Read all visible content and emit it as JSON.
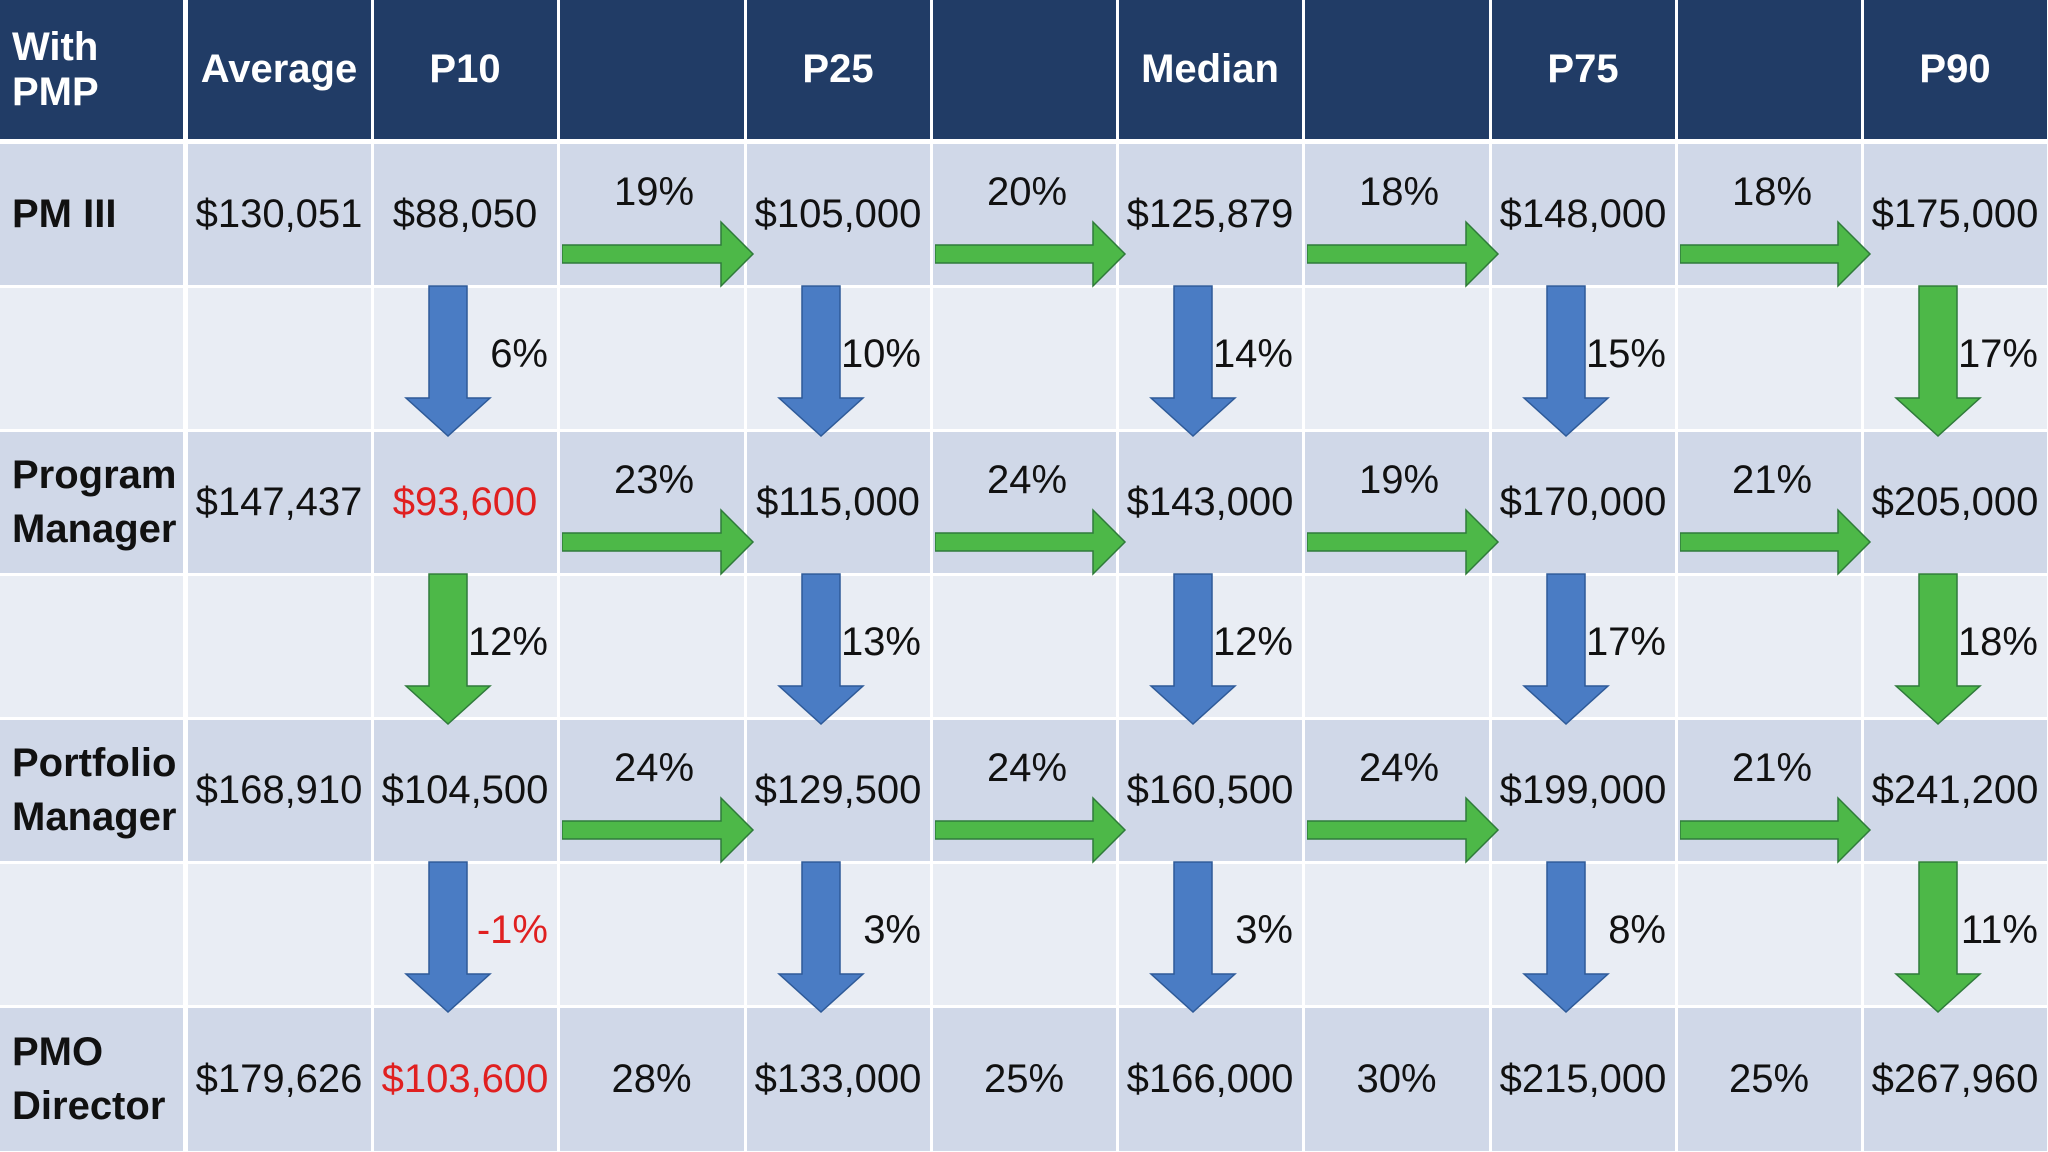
{
  "header": [
    "With PMP",
    "Average",
    "P10",
    "",
    "P25",
    "",
    "Median",
    "",
    "P75",
    "",
    "P90"
  ],
  "rows": [
    {
      "role": "PM III",
      "average": "$130,051",
      "values": [
        {
          "text": "$88,050",
          "red": false
        },
        {
          "text": "$105,000",
          "red": false
        },
        {
          "text": "$125,879",
          "red": false
        },
        {
          "text": "$148,000",
          "red": false
        },
        {
          "text": "$175,000",
          "red": false
        }
      ],
      "gaps": [
        "19%",
        "20%",
        "18%",
        "18%"
      ],
      "gaps_arrow": true
    },
    {
      "role": "Program Manager",
      "average": "$147,437",
      "values": [
        {
          "text": "$93,600",
          "red": true
        },
        {
          "text": "$115,000",
          "red": false
        },
        {
          "text": "$143,000",
          "red": false
        },
        {
          "text": "$170,000",
          "red": false
        },
        {
          "text": "$205,000",
          "red": false
        }
      ],
      "gaps": [
        "23%",
        "24%",
        "19%",
        "21%"
      ],
      "gaps_arrow": true
    },
    {
      "role": "Portfolio Manager",
      "average": "$168,910",
      "values": [
        {
          "text": "$104,500",
          "red": false
        },
        {
          "text": "$129,500",
          "red": false
        },
        {
          "text": "$160,500",
          "red": false
        },
        {
          "text": "$199,000",
          "red": false
        },
        {
          "text": "$241,200",
          "red": false
        }
      ],
      "gaps": [
        "24%",
        "24%",
        "24%",
        "21%"
      ],
      "gaps_arrow": true
    },
    {
      "role": "PMO Director",
      "average": "$179,626",
      "values": [
        {
          "text": "$103,600",
          "red": true
        },
        {
          "text": "$133,000",
          "red": false
        },
        {
          "text": "$166,000",
          "red": false
        },
        {
          "text": "$215,000",
          "red": false
        },
        {
          "text": "$267,960",
          "red": false
        }
      ],
      "gaps": [
        "28%",
        "25%",
        "30%",
        "25%"
      ],
      "gaps_arrow": false
    }
  ],
  "transitions": [
    [
      {
        "pct": "6%",
        "color": "blue",
        "red": false
      },
      {
        "pct": "10%",
        "color": "blue",
        "red": false
      },
      {
        "pct": "14%",
        "color": "blue",
        "red": false
      },
      {
        "pct": "15%",
        "color": "blue",
        "red": false
      },
      {
        "pct": "17%",
        "color": "green",
        "red": false
      }
    ],
    [
      {
        "pct": "12%",
        "color": "green",
        "red": false
      },
      {
        "pct": "13%",
        "color": "blue",
        "red": false
      },
      {
        "pct": "12%",
        "color": "blue",
        "red": false
      },
      {
        "pct": "17%",
        "color": "blue",
        "red": false
      },
      {
        "pct": "18%",
        "color": "green",
        "red": false
      }
    ],
    [
      {
        "pct": "-1%",
        "color": "blue",
        "red": true
      },
      {
        "pct": "3%",
        "color": "blue",
        "red": false
      },
      {
        "pct": "3%",
        "color": "blue",
        "red": false
      },
      {
        "pct": "8%",
        "color": "blue",
        "red": false
      },
      {
        "pct": "11%",
        "color": "green",
        "red": false
      }
    ]
  ],
  "colors": {
    "header_bg": "#213c66",
    "row_dark": "#d0d8e8",
    "row_light": "#e9edf4",
    "arrow_green": "#4db848",
    "arrow_blue": "#4a7cc4",
    "highlight_red": "#e02020"
  }
}
